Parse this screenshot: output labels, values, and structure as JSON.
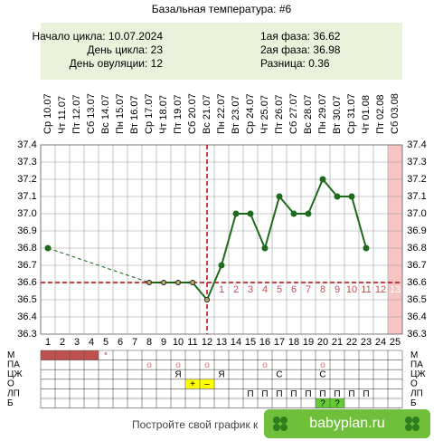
{
  "chart_data": {
    "type": "line",
    "title": "Базальная температура: #6",
    "info": {
      "left": [
        "Начало цикла: 10.07.2024",
        "День цикла: 23",
        "День овуляции: 12"
      ],
      "right": [
        "1ая фаза: 36.62",
        "2ая фаза: 36.98",
        "Разница: 0.36"
      ]
    },
    "weekdays": [
      "Ср",
      "Чт",
      "Пт",
      "Сб",
      "Вс",
      "Пн",
      "Вт",
      "Ср",
      "Чт",
      "Пт",
      "Сб",
      "Вс",
      "Пн",
      "Вт",
      "Ср",
      "Чт",
      "Пт",
      "Сб",
      "Вс",
      "Пн",
      "Вт",
      "Ср",
      "Чт",
      "Пт",
      "Сб"
    ],
    "dates": [
      "10.07",
      "11.07",
      "12.07",
      "13.07",
      "14.07",
      "15.07",
      "16.07",
      "17.07",
      "18.07",
      "19.07",
      "20.07",
      "21.07",
      "22.07",
      "23.07",
      "24.07",
      "25.07",
      "26.07",
      "27.07",
      "28.07",
      "29.07",
      "30.07",
      "31.07",
      "01.08",
      "02.08",
      "03.08"
    ],
    "categories": [
      1,
      2,
      3,
      4,
      5,
      6,
      7,
      8,
      9,
      10,
      11,
      12,
      13,
      14,
      15,
      16,
      17,
      18,
      19,
      20,
      21,
      22,
      23,
      24,
      25
    ],
    "values": [
      36.8,
      null,
      null,
      null,
      null,
      null,
      null,
      36.6,
      36.6,
      36.6,
      36.6,
      36.5,
      36.7,
      37.0,
      37.0,
      36.8,
      37.1,
      37.0,
      37.0,
      37.2,
      37.1,
      37.1,
      36.8,
      null,
      null
    ],
    "color": "#1e6b1e",
    "ylim": [
      36.3,
      37.4
    ],
    "yticks": [
      36.3,
      36.4,
      36.5,
      36.6,
      36.7,
      36.8,
      36.9,
      {
        "value": 37,
        "label": "37.0"
      },
      37.1,
      37.2,
      37.3,
      37.4
    ],
    "grid": true,
    "coverline": 36.6,
    "ovulation_day": 12,
    "phase2_days": [
      1,
      2,
      3,
      4,
      5,
      6,
      7,
      8,
      9,
      10,
      11,
      12,
      13
    ],
    "highlight_day": 25,
    "table": [
      {
        "label": "М",
        "filled_days": [
          1,
          2,
          3,
          4
        ],
        "cells": [
          null,
          null,
          null,
          null,
          "*",
          null,
          null,
          null,
          null,
          null,
          null,
          null,
          null,
          null,
          null,
          null,
          null,
          null,
          null,
          null,
          null,
          null,
          null,
          null,
          null
        ]
      },
      {
        "label": "ПА",
        "cells": [
          null,
          null,
          null,
          null,
          null,
          null,
          null,
          "o",
          null,
          "o",
          null,
          "o",
          null,
          null,
          null,
          "o",
          null,
          null,
          null,
          "o",
          null,
          null,
          null,
          null,
          null
        ]
      },
      {
        "label": "ЦЖ",
        "cells": [
          null,
          null,
          null,
          null,
          null,
          null,
          null,
          null,
          null,
          "Я",
          null,
          null,
          "Я",
          null,
          null,
          null,
          "С",
          null,
          null,
          "С",
          null,
          null,
          null,
          null,
          null
        ]
      },
      {
        "label": "О",
        "cell_color": "#ffff00",
        "cells": [
          null,
          null,
          null,
          null,
          null,
          null,
          null,
          null,
          null,
          null,
          "+",
          "–",
          null,
          null,
          null,
          null,
          null,
          null,
          null,
          null,
          null,
          null,
          null,
          null,
          null
        ]
      },
      {
        "label": "ЛП",
        "cells": [
          null,
          null,
          null,
          null,
          null,
          null,
          null,
          null,
          null,
          null,
          null,
          null,
          null,
          null,
          "П",
          "П",
          "П",
          "П",
          "П",
          "П",
          "П",
          "П",
          "П",
          null,
          null
        ]
      },
      {
        "label": "Б",
        "cell_color": "#66cc33",
        "cells": [
          null,
          null,
          null,
          null,
          null,
          null,
          null,
          null,
          null,
          null,
          null,
          null,
          null,
          null,
          null,
          null,
          null,
          null,
          null,
          "?",
          "?",
          null,
          null,
          null,
          null
        ]
      }
    ],
    "footer": "Постройте свой график к",
    "logo": "babyplan.ru"
  }
}
